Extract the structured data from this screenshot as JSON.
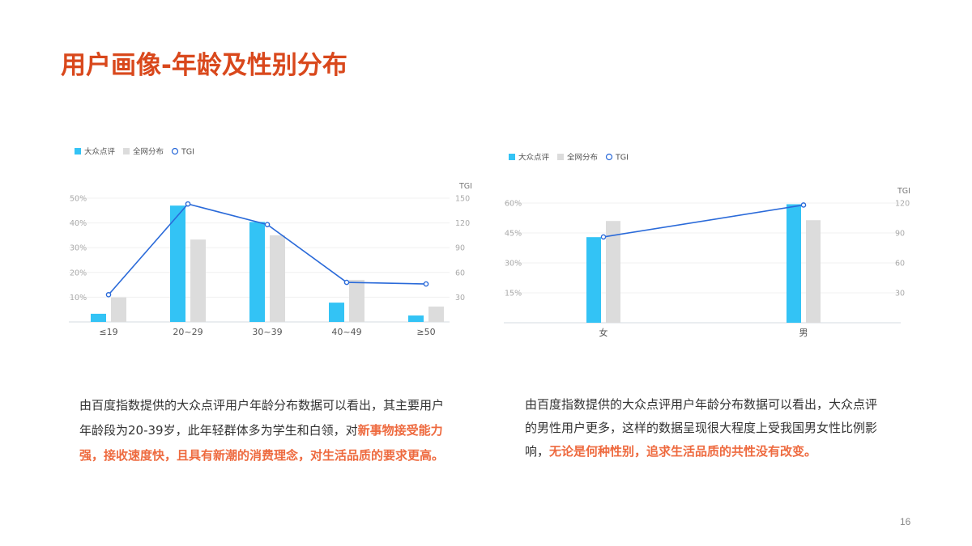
{
  "title": "用户画像-年龄及性别分布",
  "page_number": "16",
  "colors": {
    "title": "#d9481c",
    "highlight": "#ee6a3f",
    "dianping": "#33c3f5",
    "all_web": "#dcdcdc",
    "tgi": "#2a6ad9"
  },
  "chart_data": [
    {
      "type": "bar+line",
      "legend": [
        "大众点评",
        "全网分布",
        "TGI"
      ],
      "legend_position": "top-left",
      "categories": [
        "≤19",
        "20~29",
        "30~39",
        "40~49",
        "≥50"
      ],
      "series": [
        {
          "name": "大众点评",
          "type": "bar",
          "axis": "left",
          "values": [
            3.3,
            47,
            40.4,
            7.8,
            2.6
          ]
        },
        {
          "name": "全网分布",
          "type": "bar",
          "axis": "left",
          "values": [
            9.9,
            33.3,
            35,
            17,
            6.2
          ]
        },
        {
          "name": "TGI",
          "type": "line",
          "axis": "right",
          "values": [
            33,
            143,
            118,
            48,
            46
          ]
        }
      ],
      "y_left": {
        "ticks": [
          "10%",
          "20%",
          "30%",
          "40%",
          "50%"
        ],
        "range": [
          0,
          50
        ]
      },
      "y_right": {
        "label": "TGI",
        "ticks": [
          "30",
          "60",
          "90",
          "120",
          "150"
        ],
        "range": [
          0,
          150
        ]
      },
      "grid": true
    },
    {
      "type": "bar+line",
      "legend": [
        "大众点评",
        "全网分布",
        "TGI"
      ],
      "legend_position": "top-left",
      "categories": [
        "女",
        "男"
      ],
      "series": [
        {
          "name": "大众点评",
          "type": "bar",
          "axis": "left",
          "values": [
            42.9,
            59.4
          ]
        },
        {
          "name": "全网分布",
          "type": "bar",
          "axis": "left",
          "values": [
            51,
            51.4
          ]
        },
        {
          "name": "TGI",
          "type": "line",
          "axis": "right",
          "values": [
            86,
            118
          ]
        }
      ],
      "y_left": {
        "ticks": [
          "15%",
          "30%",
          "45%",
          "60%"
        ],
        "range": [
          0,
          60
        ]
      },
      "y_right": {
        "label": "TGI",
        "ticks": [
          "30",
          "60",
          "90",
          "120"
        ],
        "range": [
          0,
          120
        ]
      },
      "grid": true
    }
  ],
  "paragraphs": [
    [
      {
        "text": "由百度指数提供的大众点评用户年龄分布数据可以看出，其主要用户年龄段为20-39岁，此年轻群体多为学生和白领，对",
        "highlight": false
      },
      {
        "text": "新事物接受能力强，接收速度快，且具有新潮的消费理念，对生活品质的要求更高。",
        "highlight": true
      }
    ],
    [
      {
        "text": "由百度指数提供的大众点评用户年龄分布数据可以看出，大众点评的男性用户更多，这样的数据呈现很大程度上受我国男女性比例影响，",
        "highlight": false
      },
      {
        "text": "无论是何种性别，追求生活品质的共性没有改变。",
        "highlight": true
      }
    ]
  ]
}
